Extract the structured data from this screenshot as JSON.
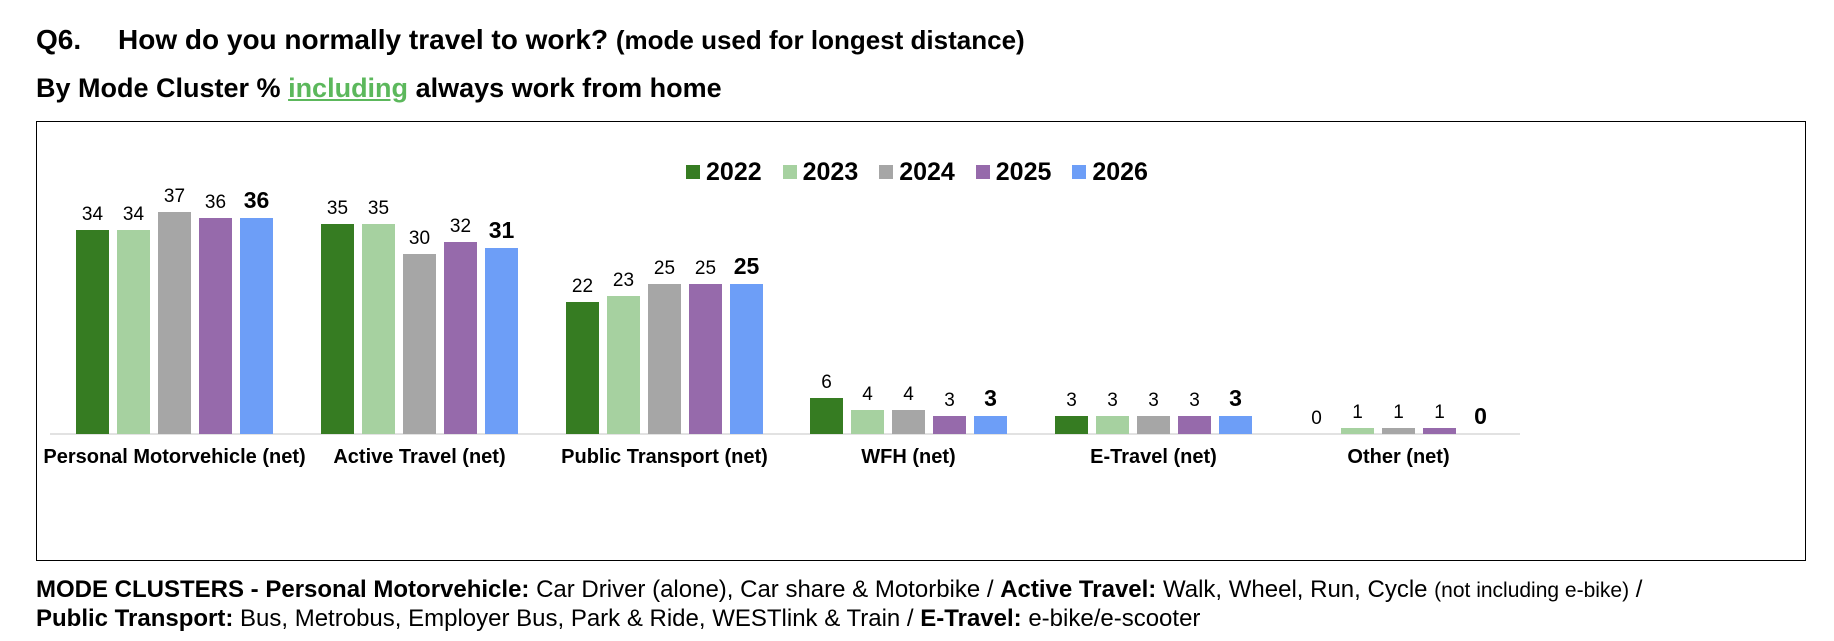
{
  "title": {
    "qnum": "Q6.",
    "question": "How do you normally travel to work?",
    "question_sub": "(mode used for longest distance)",
    "subtitle_pre": "By Mode Cluster %",
    "subtitle_highlight": "including",
    "subtitle_post": "always work from home"
  },
  "colors": {
    "2022": "#367c22",
    "2023": "#a6d1a0",
    "2024": "#a6a6a6",
    "2025": "#966aab",
    "2026": "#6d9ef7",
    "highlight": "#5cb85c"
  },
  "chart_data": {
    "type": "bar",
    "categories": [
      "Personal Motorvehicle (net)",
      "Active Travel (net)",
      "Public Transport (net)",
      "WFH (net)",
      "E-Travel (net)",
      "Other (net)"
    ],
    "series": [
      {
        "name": "2022",
        "values": [
          34,
          35,
          22,
          6,
          3,
          0
        ]
      },
      {
        "name": "2023",
        "values": [
          34,
          35,
          23,
          4,
          3,
          1
        ]
      },
      {
        "name": "2024",
        "values": [
          37,
          30,
          25,
          4,
          3,
          1
        ]
      },
      {
        "name": "2025",
        "values": [
          36,
          32,
          25,
          3,
          3,
          1
        ]
      },
      {
        "name": "2026",
        "values": [
          36,
          31,
          25,
          3,
          3,
          0
        ]
      }
    ],
    "ylim": [
      0,
      40
    ],
    "grid": false,
    "legend": "top-center",
    "data_labels": true,
    "bold_series": "2026"
  },
  "footnote": {
    "line1_lead": "MODE CLUSTERS - Personal Motorvehicle:",
    "line1_pm": " Car Driver (alone), Car share & Motorbike  / ",
    "line1_at_label": "Active Travel:",
    "line1_at": " Walk, Wheel, Run, Cycle ",
    "line1_note": "(not including e-bike)",
    "line1_tail": " /",
    "line2_pt_label": "Public Transport:",
    "line2_pt": " Bus, Metrobus, Employer Bus, Park & Ride, WESTlink & Train  /  ",
    "line2_et_label": "E-Travel:",
    "line2_et": " e-bike/e-scooter"
  }
}
